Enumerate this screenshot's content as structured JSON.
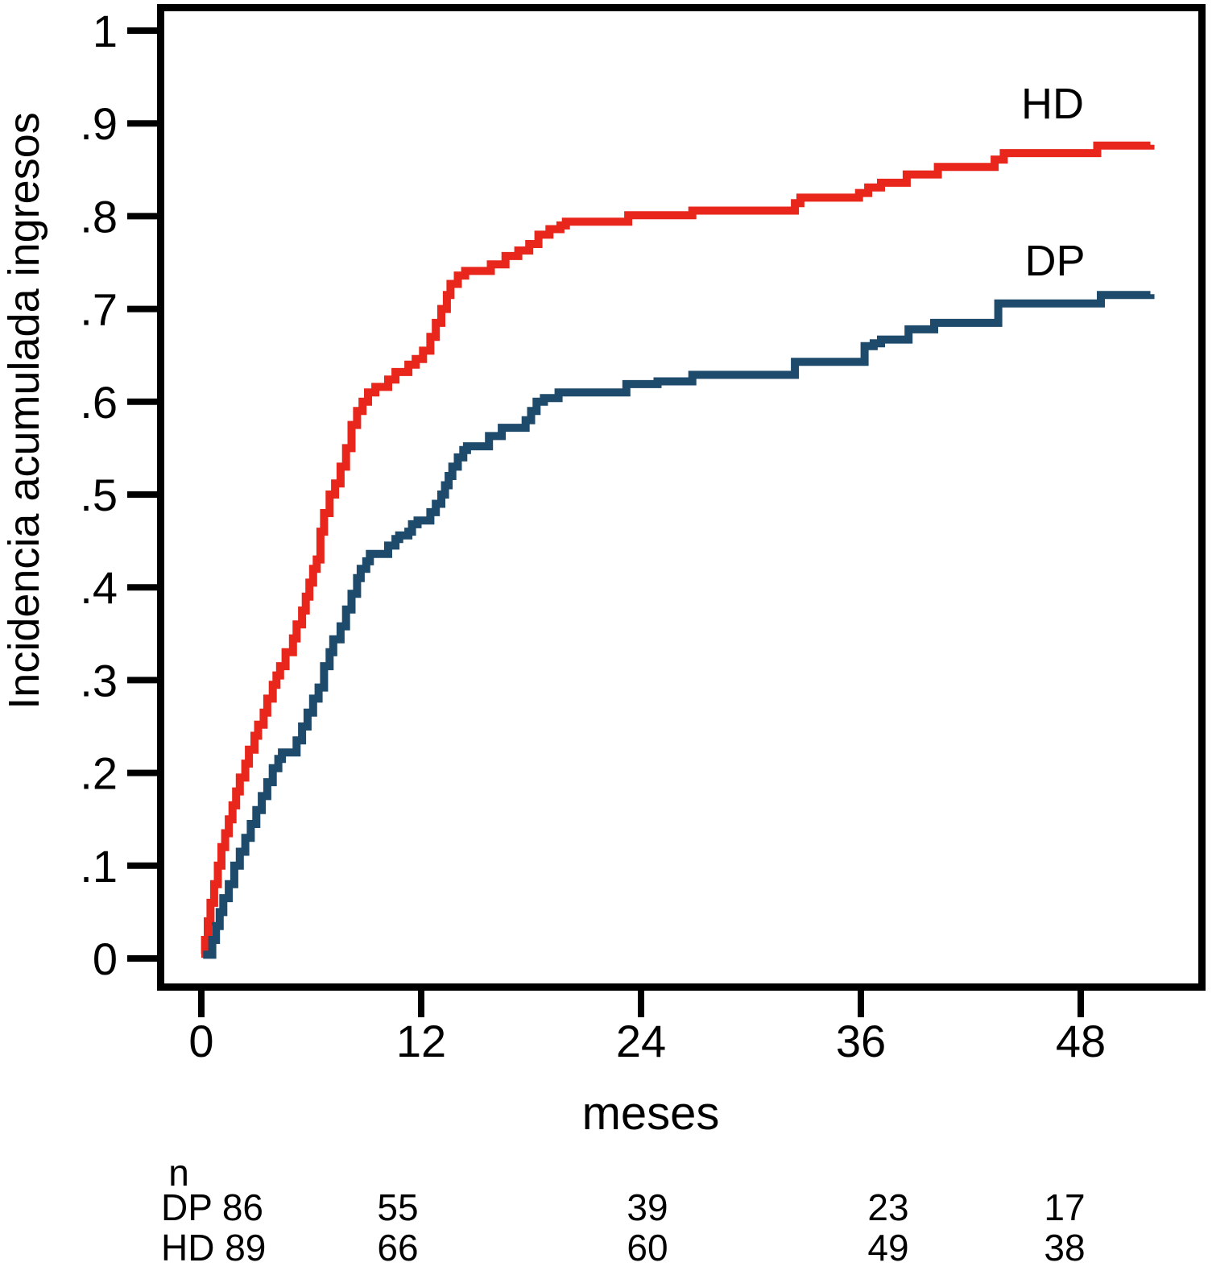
{
  "chart_data": {
    "type": "line",
    "subtype": "step-cumulative-incidence",
    "title": "",
    "ylabel": "Incidencia acumulada ingresos",
    "xlabel": "meses",
    "xlim": [
      0,
      53
    ],
    "ylim": [
      0,
      1
    ],
    "grid": false,
    "x_ticks": [
      0,
      12,
      24,
      36,
      48
    ],
    "y_ticks": [
      {
        "v": 0.0,
        "label": "0"
      },
      {
        "v": 0.1,
        "label": ".1"
      },
      {
        "v": 0.2,
        "label": ".2"
      },
      {
        "v": 0.3,
        "label": ".3"
      },
      {
        "v": 0.4,
        "label": ".4"
      },
      {
        "v": 0.5,
        "label": ".5"
      },
      {
        "v": 0.6,
        "label": ".6"
      },
      {
        "v": 0.7,
        "label": ".7"
      },
      {
        "v": 0.8,
        "label": ".8"
      },
      {
        "v": 0.9,
        "label": ".9"
      },
      {
        "v": 1.0,
        "label": "1"
      }
    ],
    "series": [
      {
        "name": "HD",
        "color": "#e8261b",
        "points": [
          [
            0,
            0.005
          ],
          [
            0.2,
            0.02
          ],
          [
            0.35,
            0.04
          ],
          [
            0.5,
            0.06
          ],
          [
            0.7,
            0.08
          ],
          [
            0.9,
            0.1
          ],
          [
            1.1,
            0.12
          ],
          [
            1.3,
            0.135
          ],
          [
            1.5,
            0.15
          ],
          [
            1.7,
            0.165
          ],
          [
            1.9,
            0.18
          ],
          [
            2.1,
            0.195
          ],
          [
            2.4,
            0.21
          ],
          [
            2.6,
            0.225
          ],
          [
            2.9,
            0.24
          ],
          [
            3.1,
            0.252
          ],
          [
            3.4,
            0.265
          ],
          [
            3.6,
            0.28
          ],
          [
            3.9,
            0.295
          ],
          [
            4.1,
            0.305
          ],
          [
            4.3,
            0.315
          ],
          [
            4.6,
            0.33
          ],
          [
            5,
            0.345
          ],
          [
            5.2,
            0.36
          ],
          [
            5.5,
            0.375
          ],
          [
            5.7,
            0.39
          ],
          [
            5.9,
            0.405
          ],
          [
            6.1,
            0.42
          ],
          [
            6.3,
            0.43
          ],
          [
            6.5,
            0.46
          ],
          [
            6.7,
            0.48
          ],
          [
            7,
            0.5
          ],
          [
            7.3,
            0.512
          ],
          [
            7.6,
            0.53
          ],
          [
            7.9,
            0.55
          ],
          [
            8.2,
            0.575
          ],
          [
            8.5,
            0.59
          ],
          [
            8.8,
            0.6
          ],
          [
            9.1,
            0.61
          ],
          [
            9.5,
            0.616
          ],
          [
            10.2,
            0.624
          ],
          [
            10.6,
            0.632
          ],
          [
            11.3,
            0.64
          ],
          [
            11.7,
            0.646
          ],
          [
            12.1,
            0.655
          ],
          [
            12.5,
            0.67
          ],
          [
            12.8,
            0.685
          ],
          [
            13.1,
            0.7
          ],
          [
            13.4,
            0.715
          ],
          [
            13.6,
            0.727
          ],
          [
            14,
            0.736
          ],
          [
            14.4,
            0.741
          ],
          [
            15.8,
            0.748
          ],
          [
            16.6,
            0.757
          ],
          [
            17.3,
            0.763
          ],
          [
            17.9,
            0.77
          ],
          [
            18.4,
            0.78
          ],
          [
            19,
            0.786
          ],
          [
            19.6,
            0.79
          ],
          [
            19.9,
            0.794
          ],
          [
            23.3,
            0.801
          ],
          [
            26.8,
            0.806
          ],
          [
            32.4,
            0.814
          ],
          [
            32.7,
            0.82
          ],
          [
            35.9,
            0.825
          ],
          [
            36.4,
            0.831
          ],
          [
            37.1,
            0.836
          ],
          [
            38.5,
            0.845
          ],
          [
            40.2,
            0.853
          ],
          [
            43.3,
            0.861
          ],
          [
            43.8,
            0.868
          ],
          [
            48.9,
            0.876
          ],
          [
            51.8,
            0.877
          ]
        ]
      },
      {
        "name": "DP",
        "color": "#1e4a6c",
        "points": [
          [
            0.1,
            0.004
          ],
          [
            0.6,
            0.02
          ],
          [
            0.8,
            0.035
          ],
          [
            1,
            0.05
          ],
          [
            1.2,
            0.065
          ],
          [
            1.5,
            0.08
          ],
          [
            1.8,
            0.1
          ],
          [
            2.1,
            0.115
          ],
          [
            2.4,
            0.13
          ],
          [
            2.7,
            0.145
          ],
          [
            3,
            0.16
          ],
          [
            3.3,
            0.175
          ],
          [
            3.6,
            0.19
          ],
          [
            3.9,
            0.205
          ],
          [
            4.2,
            0.215
          ],
          [
            4.4,
            0.222
          ],
          [
            5.2,
            0.235
          ],
          [
            5.5,
            0.25
          ],
          [
            5.8,
            0.265
          ],
          [
            6.1,
            0.28
          ],
          [
            6.4,
            0.292
          ],
          [
            6.7,
            0.315
          ],
          [
            7,
            0.33
          ],
          [
            7.2,
            0.344
          ],
          [
            7.6,
            0.358
          ],
          [
            7.9,
            0.376
          ],
          [
            8.2,
            0.393
          ],
          [
            8.5,
            0.41
          ],
          [
            8.7,
            0.42
          ],
          [
            9,
            0.428
          ],
          [
            9.2,
            0.436
          ],
          [
            10.2,
            0.445
          ],
          [
            10.6,
            0.452
          ],
          [
            10.8,
            0.456
          ],
          [
            11.3,
            0.46
          ],
          [
            11.5,
            0.468
          ],
          [
            11.8,
            0.472
          ],
          [
            12.5,
            0.481
          ],
          [
            12.8,
            0.49
          ],
          [
            13.1,
            0.5
          ],
          [
            13.3,
            0.51
          ],
          [
            13.5,
            0.52
          ],
          [
            13.7,
            0.53
          ],
          [
            14,
            0.54
          ],
          [
            14.3,
            0.548
          ],
          [
            14.5,
            0.552
          ],
          [
            15.7,
            0.563
          ],
          [
            16.4,
            0.572
          ],
          [
            17.7,
            0.58
          ],
          [
            18,
            0.59
          ],
          [
            18.3,
            0.6
          ],
          [
            18.7,
            0.604
          ],
          [
            19.5,
            0.61
          ],
          [
            23.2,
            0.619
          ],
          [
            24.9,
            0.622
          ],
          [
            26.8,
            0.629
          ],
          [
            32.4,
            0.643
          ],
          [
            36.2,
            0.66
          ],
          [
            36.7,
            0.663
          ],
          [
            37.1,
            0.667
          ],
          [
            38.6,
            0.678
          ],
          [
            40,
            0.685
          ],
          [
            43.5,
            0.706
          ],
          [
            49.1,
            0.715
          ],
          [
            51.8,
            0.716
          ]
        ]
      }
    ],
    "legend_position": "labels-on-chart",
    "risk_table": {
      "header": "n",
      "time_columns": [
        12,
        24,
        36,
        48
      ],
      "rows": [
        {
          "name": "DP",
          "n0": 86,
          "counts": [
            55,
            39,
            23,
            17
          ]
        },
        {
          "name": "HD",
          "n0": 89,
          "counts": [
            66,
            60,
            49,
            38
          ]
        }
      ]
    }
  },
  "colors": {
    "hd": "#e8261b",
    "dp": "#1e4a6c",
    "axis": "#000000",
    "background": "#ffffff"
  }
}
